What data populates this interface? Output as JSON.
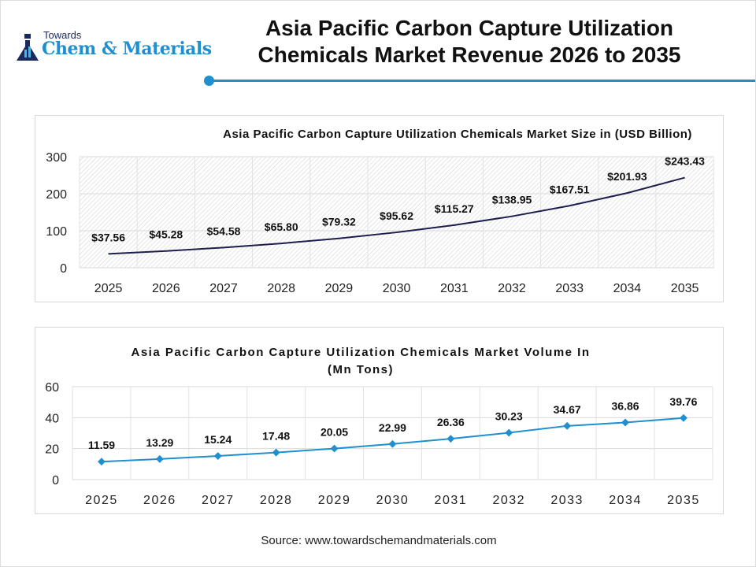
{
  "header": {
    "logo_line1": "Towards",
    "logo_line2": "Chem & Materials",
    "title": "Asia Pacific Carbon Capture Utilization Chemicals Market Revenue 2026 to 2035"
  },
  "source": "Source: www.towardschemandmaterials.com",
  "colors": {
    "accent": "#1f8fd0",
    "revenue_line": "#1b1f4d",
    "volume_line": "#1f8fd0"
  },
  "chart_data": [
    {
      "type": "line",
      "title": "Asia Pacific Carbon Capture Utilization Chemicals Market Size in (USD Billion)",
      "categories": [
        "2025",
        "2026",
        "2027",
        "2028",
        "2029",
        "2030",
        "2031",
        "2032",
        "2033",
        "2034",
        "2035"
      ],
      "values": [
        37.56,
        45.28,
        54.58,
        65.8,
        79.32,
        95.62,
        115.27,
        138.95,
        167.51,
        201.93,
        243.43
      ],
      "labels": [
        "$37.56",
        "$45.28",
        "$54.58",
        "$65.80",
        "$79.32",
        "$95.62",
        "$115.27",
        "$138.95",
        "$167.51",
        "$201.93",
        "$243.43"
      ],
      "ylim": [
        0,
        300
      ],
      "yticks": [
        "0",
        "100",
        "200",
        "300"
      ],
      "grid": true
    },
    {
      "type": "line",
      "title": "Asia Pacific Carbon Capture Utilization Chemicals Market Volume In (Mn Tons)",
      "title_lines": [
        "Asia Pacific Carbon Capture Utilization Chemicals Market Volume In",
        "(Mn Tons)"
      ],
      "categories": [
        "2025",
        "2026",
        "2027",
        "2028",
        "2029",
        "2030",
        "2031",
        "2032",
        "2033",
        "2034",
        "2035"
      ],
      "values": [
        11.59,
        13.29,
        15.24,
        17.48,
        20.05,
        22.99,
        26.36,
        30.23,
        34.67,
        36.86,
        39.76
      ],
      "labels": [
        "11.59",
        "13.29",
        "15.24",
        "17.48",
        "20.05",
        "22.99",
        "26.36",
        "30.23",
        "34.67",
        "36.86",
        "39.76"
      ],
      "ylim": [
        0,
        60
      ],
      "yticks": [
        "0",
        "20",
        "40",
        "60"
      ],
      "grid": true,
      "markers": "diamond"
    }
  ]
}
